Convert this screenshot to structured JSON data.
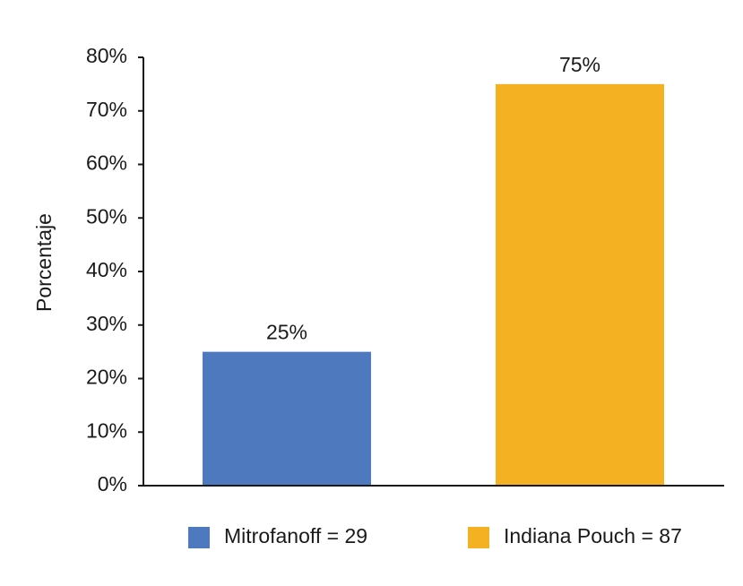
{
  "chart_data": {
    "type": "bar",
    "categories": [
      "Mitrofanoff = 29",
      "Indiana Pouch = 87"
    ],
    "values": [
      25,
      75
    ],
    "data_labels": [
      "25%",
      "75%"
    ],
    "colors": [
      "#4E79BE",
      "#F4B223"
    ],
    "title": "",
    "xlabel": "",
    "ylabel": "Porcentaje",
    "ylim": [
      0,
      80
    ],
    "yticks": [
      0,
      10,
      20,
      30,
      40,
      50,
      60,
      70,
      80
    ],
    "ytick_labels": [
      "0%",
      "10%",
      "20%",
      "30%",
      "40%",
      "50%",
      "60%",
      "70%",
      "80%"
    ],
    "grid": false,
    "legend": {
      "placement": "bottom",
      "entries": [
        "Mitrofanoff = 29",
        "Indiana Pouch = 87"
      ]
    }
  }
}
